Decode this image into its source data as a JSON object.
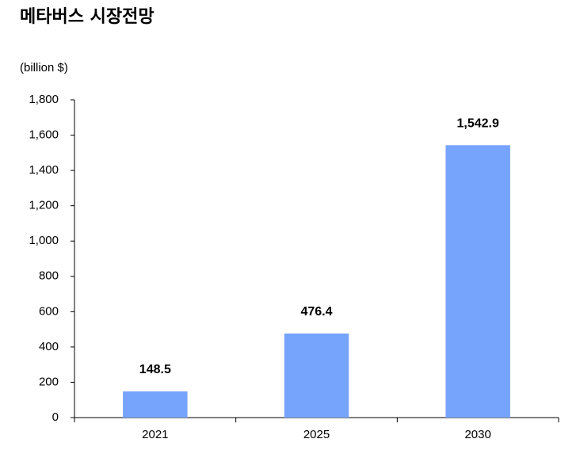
{
  "chart_data": {
    "type": "bar",
    "title": "메타버스 시장전망",
    "y_label": "(billion $)",
    "categories": [
      "2021",
      "2025",
      "2030"
    ],
    "values": [
      148.5,
      476.4,
      1542.9
    ],
    "value_labels": [
      "148.5",
      "476.4",
      "1,542.9"
    ],
    "color": "#76a3fb",
    "ylim": [
      0,
      1800
    ],
    "yticks": [
      0,
      200,
      400,
      600,
      800,
      {
        "value": 1000,
        "label": "1,000"
      },
      {
        "value": 1200,
        "label": "1,200"
      },
      {
        "value": 1400,
        "label": "1,400"
      },
      {
        "value": 1600,
        "label": "1,600"
      },
      {
        "value": 1800,
        "label": "1,800"
      }
    ],
    "grid": false
  }
}
